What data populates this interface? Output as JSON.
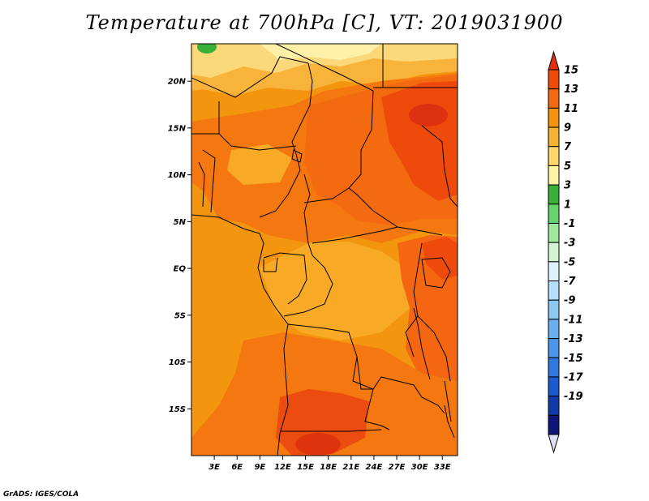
{
  "title": "Temperature at 700hPa [C], VT: 2019031900",
  "credit": "GrADS: IGES/COLA",
  "map": {
    "projection": "lat-lon",
    "lon_range": [
      0,
      35
    ],
    "lat_range": [
      -20,
      24
    ],
    "lat_ticks": [
      {
        "value": 20,
        "label": "20N"
      },
      {
        "value": 15,
        "label": "15N"
      },
      {
        "value": 10,
        "label": "10N"
      },
      {
        "value": 5,
        "label": "5N"
      },
      {
        "value": 0,
        "label": "EQ"
      },
      {
        "value": -5,
        "label": "5S"
      },
      {
        "value": -10,
        "label": "10S"
      },
      {
        "value": -15,
        "label": "15S"
      }
    ],
    "lon_ticks": [
      {
        "value": 3,
        "label": "3E"
      },
      {
        "value": 6,
        "label": "6E"
      },
      {
        "value": 9,
        "label": "9E"
      },
      {
        "value": 12,
        "label": "12E"
      },
      {
        "value": 15,
        "label": "15E"
      },
      {
        "value": 18,
        "label": "18E"
      },
      {
        "value": 21,
        "label": "21E"
      },
      {
        "value": 24,
        "label": "24E"
      },
      {
        "value": 27,
        "label": "27E"
      },
      {
        "value": 30,
        "label": "30E"
      },
      {
        "value": 33,
        "label": "33E"
      }
    ]
  },
  "colorbar": {
    "labels": [
      "15",
      "13",
      "11",
      "9",
      "7",
      "5",
      "3",
      "1",
      "-1",
      "-3",
      "-5",
      "-7",
      "-9",
      "-11",
      "-13",
      "-15",
      "-17",
      "-19"
    ],
    "colors_top_to_bottom": [
      "#e03010",
      "#f04a0a",
      "#f46a10",
      "#f5920f",
      "#f8b232",
      "#fbd66a",
      "#fff3a6",
      "#39b138",
      "#66d56a",
      "#9ee89c",
      "#d2f4d2",
      "#dff2fb",
      "#b4defa",
      "#8cc7f2",
      "#6ab0ee",
      "#4a96ea",
      "#2f78df",
      "#1c5ad0",
      "#0f3aa8",
      "#101579",
      "#e0e0f5"
    ]
  },
  "field": {
    "units": "C",
    "regions": [
      {
        "name": "background",
        "value": 10,
        "color": "#f3950f"
      },
      {
        "name": "north-pale-band",
        "value": 6,
        "color": "#fbd879"
      },
      {
        "name": "north-light-band",
        "value": 8,
        "color": "#f8b43a"
      },
      {
        "name": "sahel-warm",
        "value": 11,
        "color": "#f4780f"
      },
      {
        "name": "sudan-warm",
        "value": 12,
        "color": "#f46a10"
      },
      {
        "name": "sudan-hot",
        "value": 13,
        "color": "#ee4a0c"
      },
      {
        "name": "sudan-hot-core",
        "value": 14,
        "color": "#dc3010"
      },
      {
        "name": "congo-mild",
        "value": 9,
        "color": "#f8aa26"
      },
      {
        "name": "east-africa-warm",
        "value": 12,
        "color": "#f46612"
      },
      {
        "name": "angola-hot",
        "value": 13,
        "color": "#ec4c10"
      },
      {
        "name": "angola-hot-core",
        "value": 14,
        "color": "#e0340e"
      },
      {
        "name": "cool-spot-nw",
        "value": 2,
        "color": "#39b138"
      }
    ]
  }
}
